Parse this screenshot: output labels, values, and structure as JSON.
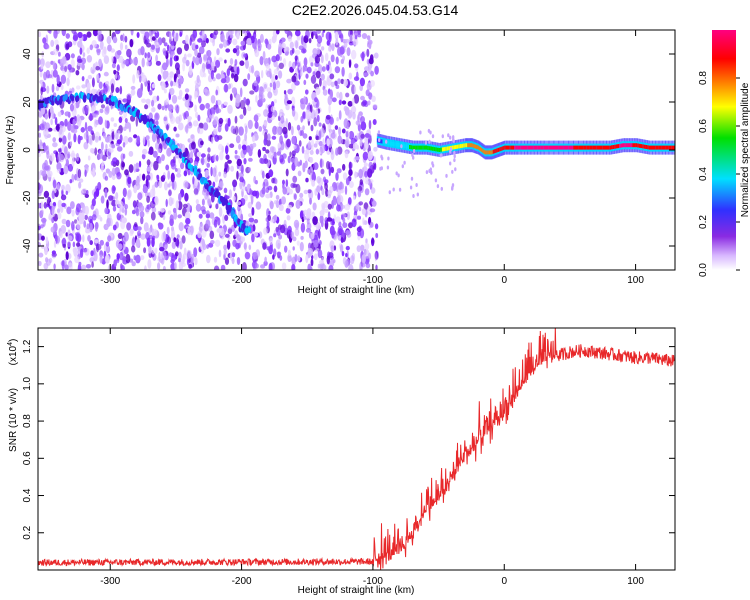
{
  "title": "C2E2.2026.045.04.53.G14",
  "chart_data": [
    {
      "type": "heatmap",
      "name": "spectrogram",
      "xlabel": "Height of straight line (km)",
      "ylabel": "Frequency (Hz)",
      "xlim": [
        -355,
        130
      ],
      "ylim": [
        -50,
        50
      ],
      "xticks": [
        -300,
        -200,
        -100,
        0,
        100
      ],
      "yticks": [
        -40,
        -20,
        0,
        20,
        40
      ],
      "xtick_labels": [
        "-300",
        "-200",
        "-100",
        "0",
        "100"
      ],
      "ytick_labels": [
        "-40",
        "-20",
        "0",
        "20",
        "40"
      ],
      "noise_region_x": [
        -355,
        -97
      ],
      "signal_trace": {
        "x": [
          -355,
          -340,
          -320,
          -300,
          -285,
          -270,
          -255,
          -240,
          -225,
          -210,
          -200,
          -195
        ],
        "y": [
          19,
          21,
          22,
          21,
          17,
          11,
          4,
          -6,
          -15,
          -24,
          -32,
          -34
        ]
      },
      "carrier_trace": {
        "x": [
          -97,
          -90,
          -80,
          -70,
          -60,
          -50,
          -40,
          -30,
          -25,
          -20,
          -15,
          -10,
          -5,
          0,
          10,
          30,
          60,
          80,
          90,
          100,
          110,
          130
        ],
        "y": [
          4,
          3,
          2,
          1,
          1,
          0,
          1,
          2,
          2,
          1,
          -1,
          -1,
          0,
          1,
          1,
          1,
          1,
          1,
          2,
          2,
          1,
          1
        ]
      },
      "carrier_amplitude": [
        0.25,
        0.35,
        0.4,
        0.45,
        0.5,
        0.55,
        0.6,
        0.65,
        0.75,
        0.7,
        0.7,
        0.8,
        0.85,
        0.9,
        0.95,
        0.95,
        0.93,
        0.9,
        0.95,
        0.93,
        0.9,
        0.88
      ]
    },
    {
      "type": "line",
      "name": "snr",
      "xlabel": "Height of straight line (km)",
      "ylabel": "SNR (10 * v/v)",
      "scale_label": "(x10",
      "scale_exponent": "4",
      "xlim": [
        -355,
        130
      ],
      "ylim": [
        0,
        13000
      ],
      "xticks": [
        -300,
        -200,
        -100,
        0,
        100
      ],
      "yticks": [
        2000,
        4000,
        6000,
        8000,
        10000,
        12000
      ],
      "xtick_labels": [
        "-300",
        "-200",
        "-100",
        "0",
        "100"
      ],
      "ytick_labels": [
        "0.2",
        "0.4",
        "0.6",
        "0.8",
        "1.0",
        "1.2"
      ],
      "color": "#e8282a",
      "x": [
        -355,
        -100,
        -80,
        -70,
        -60,
        -50,
        -40,
        -30,
        -20,
        -10,
        0,
        10,
        20,
        30,
        40,
        50,
        60,
        70,
        80,
        90,
        100,
        110,
        120,
        130
      ],
      "y": [
        400,
        450,
        900,
        1800,
        3200,
        3800,
        4800,
        6000,
        6800,
        7600,
        8400,
        9500,
        10600,
        11200,
        11500,
        11700,
        11800,
        11700,
        11600,
        11500,
        11400,
        11400,
        11300,
        11200
      ]
    }
  ],
  "colorbar": {
    "label": "Normalized spectral amplitude",
    "range": [
      0,
      1
    ],
    "ticks": [
      0.0,
      0.2,
      0.4,
      0.6,
      0.8
    ],
    "tick_labels": [
      "0.0",
      "0.2",
      "0.4",
      "0.6",
      "0.8"
    ],
    "colors": [
      "#ffffff",
      "#8a2be2",
      "#3030ff",
      "#00e0ff",
      "#00e000",
      "#ffff00",
      "#ff8000",
      "#ff0000",
      "#ff0080"
    ]
  }
}
